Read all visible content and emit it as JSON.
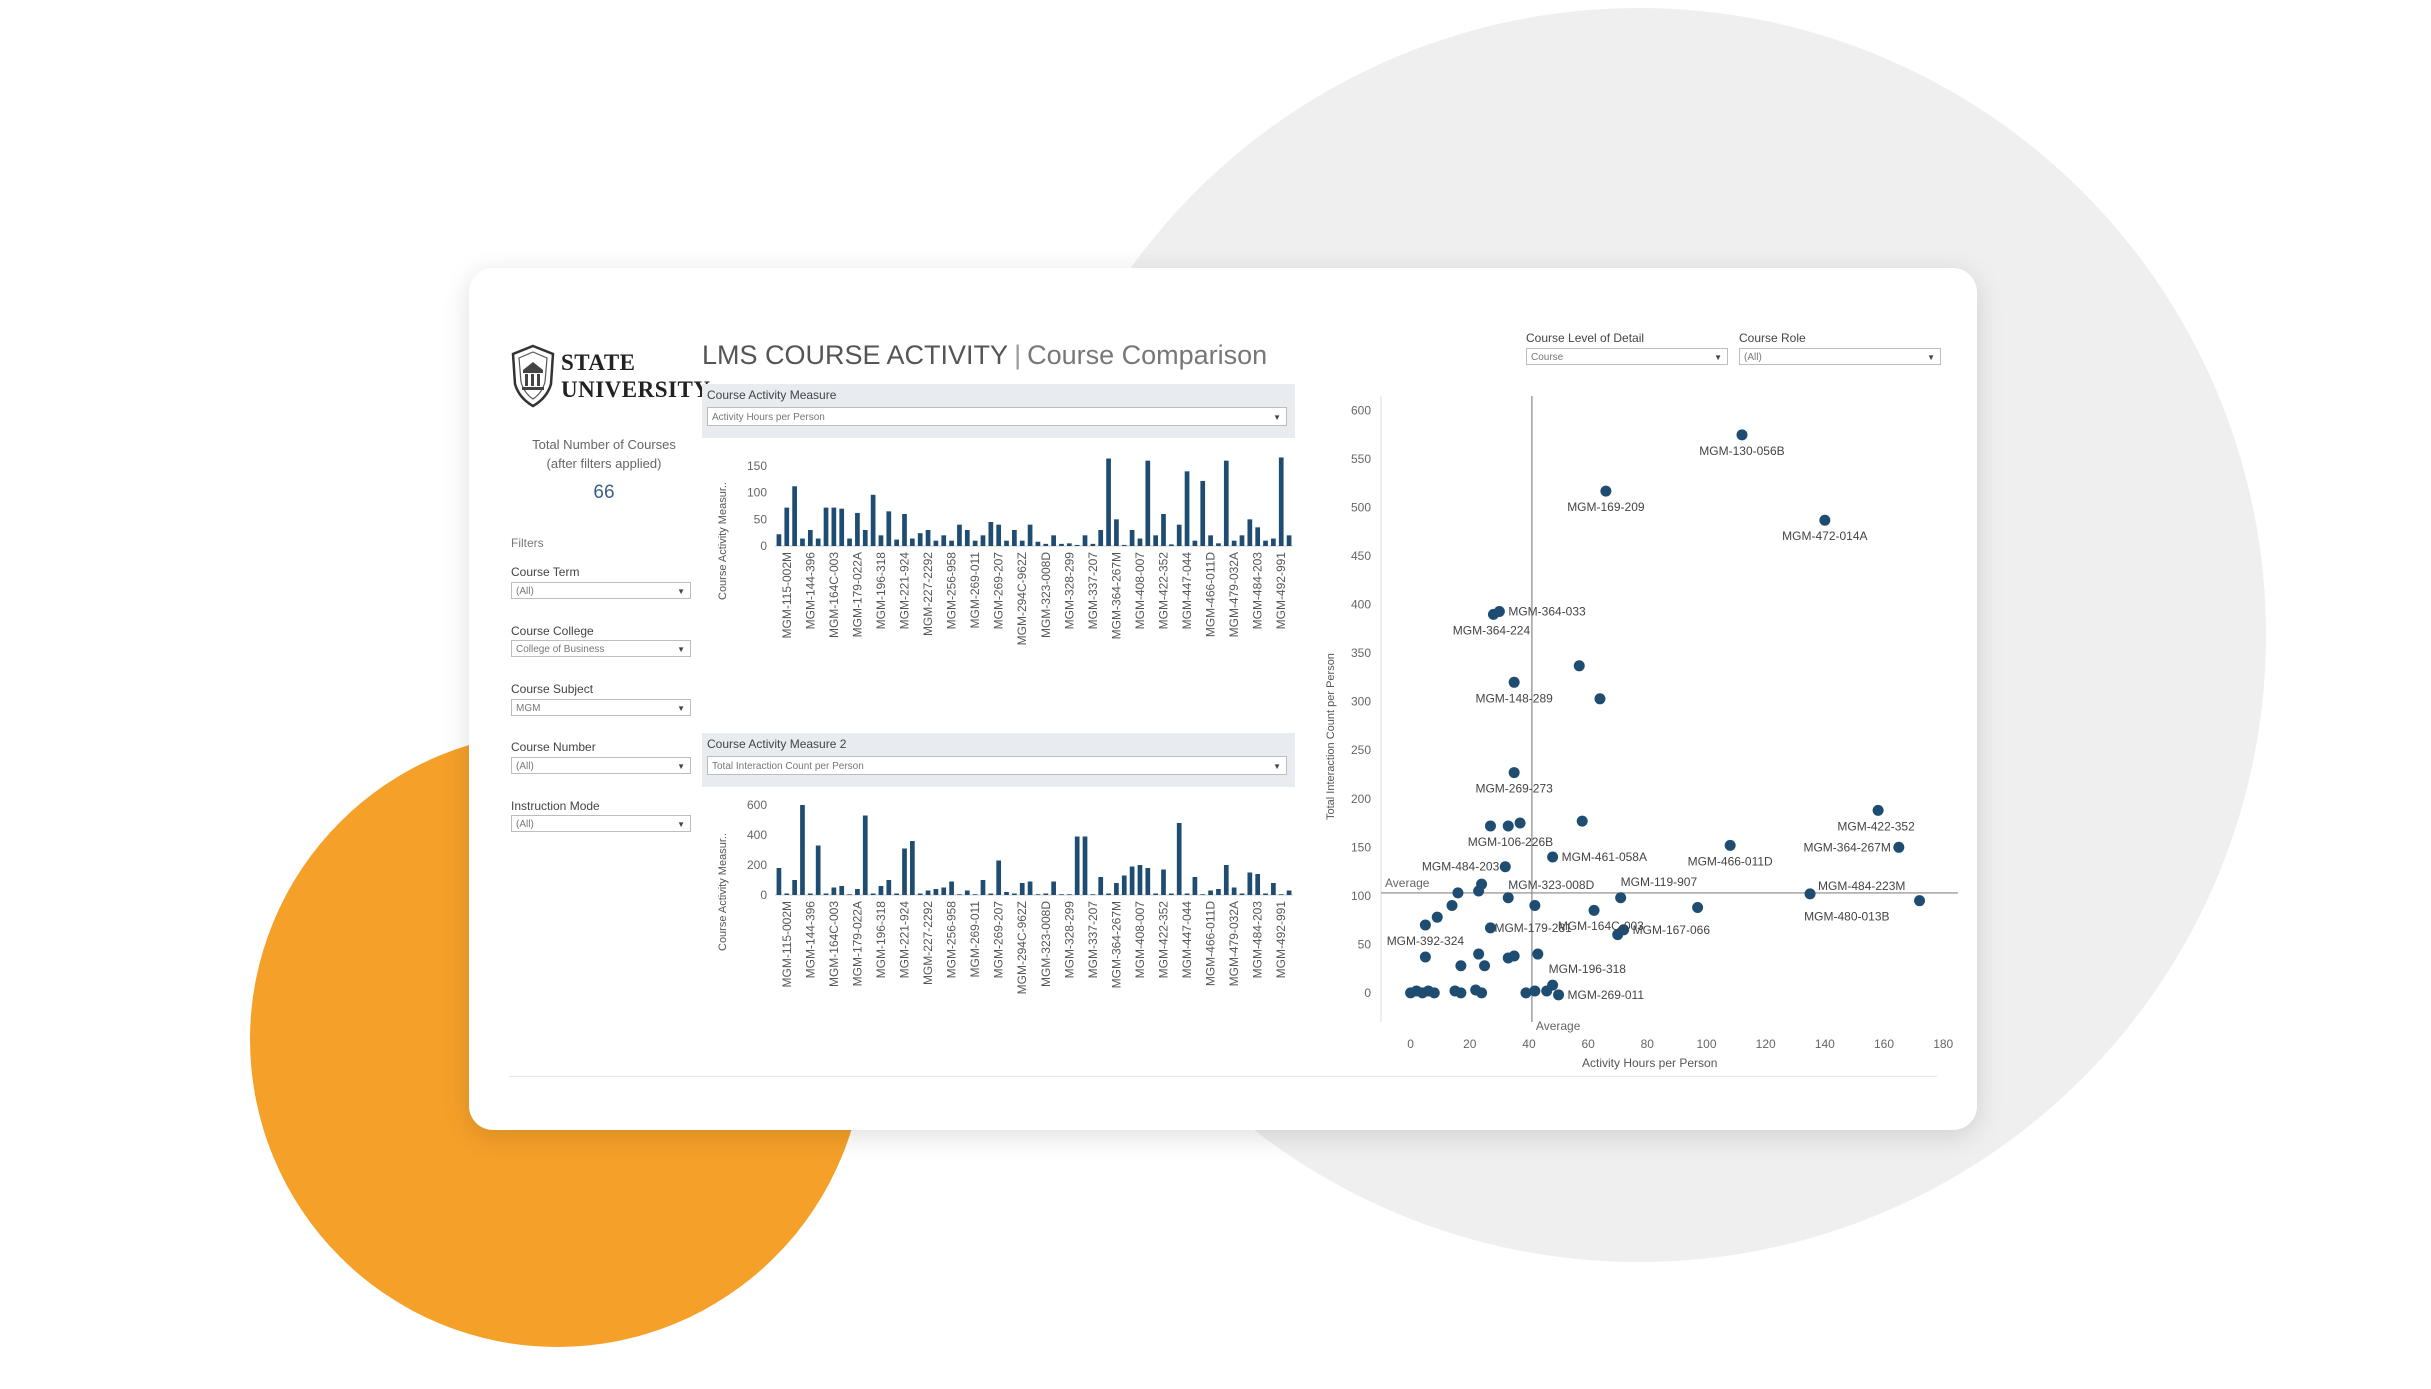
{
  "logo": {
    "line1": "STATE",
    "line2": "UNIVERSITY"
  },
  "header": {
    "title": "LMS COURSE ACTIVITY",
    "separator": "|",
    "subtitle": "Course Comparison"
  },
  "summary": {
    "label_line1": "Total Number of Courses",
    "label_line2": "(after filters applied)",
    "value": "66"
  },
  "filters": {
    "heading": "Filters",
    "items": [
      {
        "label": "Course Term",
        "value": "(All)"
      },
      {
        "label": "Course College",
        "value": "College of Business"
      },
      {
        "label": "Course Subject",
        "value": "MGM"
      },
      {
        "label": "Course Number",
        "value": "(All)"
      },
      {
        "label": "Instruction Mode",
        "value": "(All)"
      }
    ]
  },
  "panel1": {
    "label": "Course Activity Measure",
    "value": "Activity Hours per Person"
  },
  "panel2": {
    "label": "Course Activity Measure 2",
    "value": "Total Interaction Count per Person"
  },
  "scatter_controls": {
    "level_label": "Course Level of Detail",
    "level_value": "Course",
    "role_label": "Course Role",
    "role_value": "(All)"
  },
  "colors": {
    "bar": "#1f4d72",
    "accent_orange": "#f5a029",
    "background_circle": "#efefef"
  },
  "chart_data": [
    {
      "type": "bar",
      "ylabel": "Course Activity Measur..",
      "ylim": [
        0,
        180
      ],
      "yticks": [
        0,
        50,
        100,
        150
      ],
      "x_tick_labels": [
        "MGM-115-002M",
        "MGM-144-396",
        "MGM-164C-003",
        "MGM-179-022A",
        "MGM-196-318",
        "MGM-221-924",
        "MGM-227-2292",
        "MGM-256-958",
        "MGM-269-011",
        "MGM-269-207",
        "MGM-294C-962Z",
        "MGM-323-008D",
        "MGM-328-299",
        "MGM-337-207",
        "MGM-364-267M",
        "MGM-408-007",
        "MGM-422-352",
        "MGM-447-044",
        "MGM-466-011D",
        "MGM-479-032A",
        "MGM-484-203",
        "MGM-492-991"
      ],
      "values": [
        22,
        72,
        112,
        14,
        30,
        14,
        72,
        72,
        70,
        14,
        62,
        30,
        96,
        20,
        65,
        12,
        60,
        14,
        24,
        30,
        10,
        20,
        10,
        40,
        30,
        10,
        20,
        45,
        40,
        10,
        30,
        10,
        40,
        8,
        4,
        20,
        4,
        5,
        2,
        20,
        4,
        30,
        164,
        50,
        2,
        30,
        14,
        160,
        20,
        60,
        3,
        40,
        140,
        10,
        122,
        20,
        5,
        160,
        10,
        20,
        50,
        35,
        10,
        14,
        166,
        20
      ],
      "bar_color": "#1f4d72"
    },
    {
      "type": "bar",
      "ylabel": "Course Activity Measur..",
      "ylim": [
        0,
        640
      ],
      "yticks": [
        0,
        200,
        400,
        600
      ],
      "x_tick_labels": [
        "MGM-115-002M",
        "MGM-144-396",
        "MGM-164C-003",
        "MGM-179-022A",
        "MGM-196-318",
        "MGM-221-924",
        "MGM-227-2292",
        "MGM-256-958",
        "MGM-269-011",
        "MGM-269-207",
        "MGM-294C-962Z",
        "MGM-323-008D",
        "MGM-328-299",
        "MGM-337-207",
        "MGM-364-267M",
        "MGM-408-007",
        "MGM-422-352",
        "MGM-447-044",
        "MGM-466-011D",
        "MGM-479-032A",
        "MGM-484-203",
        "MGM-492-991"
      ],
      "values": [
        180,
        10,
        100,
        600,
        10,
        330,
        10,
        50,
        60,
        5,
        40,
        530,
        10,
        60,
        100,
        10,
        310,
        360,
        10,
        30,
        40,
        50,
        90,
        5,
        30,
        5,
        100,
        10,
        230,
        20,
        10,
        80,
        90,
        5,
        10,
        90,
        5,
        5,
        390,
        390,
        5,
        120,
        10,
        80,
        130,
        190,
        200,
        180,
        10,
        170,
        10,
        480,
        10,
        120,
        5,
        30,
        40,
        200,
        50,
        10,
        150,
        140,
        10,
        80,
        5,
        30
      ],
      "bar_color": "#1f4d72"
    },
    {
      "type": "scatter",
      "xlabel": "Activity Hours per Person",
      "ylabel": "Total Interaction Count per Person",
      "xlim": [
        -10,
        185
      ],
      "ylim": [
        -30,
        615
      ],
      "xticks": [
        0,
        20,
        40,
        60,
        80,
        100,
        120,
        140,
        160,
        180
      ],
      "yticks": [
        0,
        50,
        100,
        150,
        200,
        250,
        300,
        350,
        400,
        450,
        500,
        550,
        600
      ],
      "reference_lines": {
        "x_average": 41,
        "y_average": 103,
        "label": "Average"
      },
      "points": [
        {
          "x": 112,
          "y": 575,
          "label": "MGM-130-056B"
        },
        {
          "x": 66,
          "y": 517,
          "label": "MGM-169-209"
        },
        {
          "x": 140,
          "y": 487,
          "label": "MGM-472-014A"
        },
        {
          "x": 30,
          "y": 393,
          "label": "MGM-364-033"
        },
        {
          "x": 28,
          "y": 390,
          "label": "MGM-364-224"
        },
        {
          "x": 57,
          "y": 337
        },
        {
          "x": 35,
          "y": 320,
          "label": "MGM-148-289"
        },
        {
          "x": 64,
          "y": 303
        },
        {
          "x": 35,
          "y": 227,
          "label": "MGM-269-273"
        },
        {
          "x": 158,
          "y": 188,
          "label": "MGM-422-352"
        },
        {
          "x": 165,
          "y": 150,
          "label": "MGM-364-267M"
        },
        {
          "x": 58,
          "y": 177
        },
        {
          "x": 37,
          "y": 175
        },
        {
          "x": 33,
          "y": 172
        },
        {
          "x": 27,
          "y": 172,
          "label": "MGM-106-226B"
        },
        {
          "x": 108,
          "y": 152,
          "label": "MGM-466-011D"
        },
        {
          "x": 48,
          "y": 140,
          "label": "MGM-461-058A"
        },
        {
          "x": 32,
          "y": 130,
          "label": "MGM-484-203"
        },
        {
          "x": 24,
          "y": 112
        },
        {
          "x": 23,
          "y": 105
        },
        {
          "x": 16,
          "y": 103
        },
        {
          "x": 33,
          "y": 98,
          "label": "MGM-323-008D"
        },
        {
          "x": 71,
          "y": 98,
          "label": "MGM-119-907"
        },
        {
          "x": 135,
          "y": 102,
          "label": "MGM-484-223M"
        },
        {
          "x": 172,
          "y": 95,
          "label": "MGM-480-013B"
        },
        {
          "x": 42,
          "y": 90
        },
        {
          "x": 97,
          "y": 88
        },
        {
          "x": 62,
          "y": 85
        },
        {
          "x": 14,
          "y": 90
        },
        {
          "x": 9,
          "y": 78
        },
        {
          "x": 5,
          "y": 70
        },
        {
          "x": 27,
          "y": 67,
          "label": "MGM-179-281"
        },
        {
          "x": 72,
          "y": 65,
          "label": "MGM-167-066"
        },
        {
          "x": 70,
          "y": 60
        },
        {
          "x": 5,
          "y": 37,
          "label": "MGM-392-324"
        },
        {
          "x": 23,
          "y": 40
        },
        {
          "x": 35,
          "y": 38
        },
        {
          "x": 33,
          "y": 36
        },
        {
          "x": 43,
          "y": 40,
          "label": "MGM-164C-003"
        },
        {
          "x": 17,
          "y": 28
        },
        {
          "x": 25,
          "y": 28
        },
        {
          "x": 48,
          "y": 8,
          "label": "MGM-196-318"
        },
        {
          "x": 46,
          "y": 2
        },
        {
          "x": 42,
          "y": 2
        },
        {
          "x": 39,
          "y": 0
        },
        {
          "x": 50,
          "y": -2,
          "label": "MGM-269-011"
        },
        {
          "x": 0,
          "y": 0
        },
        {
          "x": 2,
          "y": 2
        },
        {
          "x": 4,
          "y": 0
        },
        {
          "x": 6,
          "y": 2
        },
        {
          "x": 8,
          "y": 0
        },
        {
          "x": 15,
          "y": 2
        },
        {
          "x": 17,
          "y": 0
        },
        {
          "x": 22,
          "y": 3
        },
        {
          "x": 24,
          "y": 0
        }
      ],
      "point_color": "#1f4d72"
    }
  ]
}
